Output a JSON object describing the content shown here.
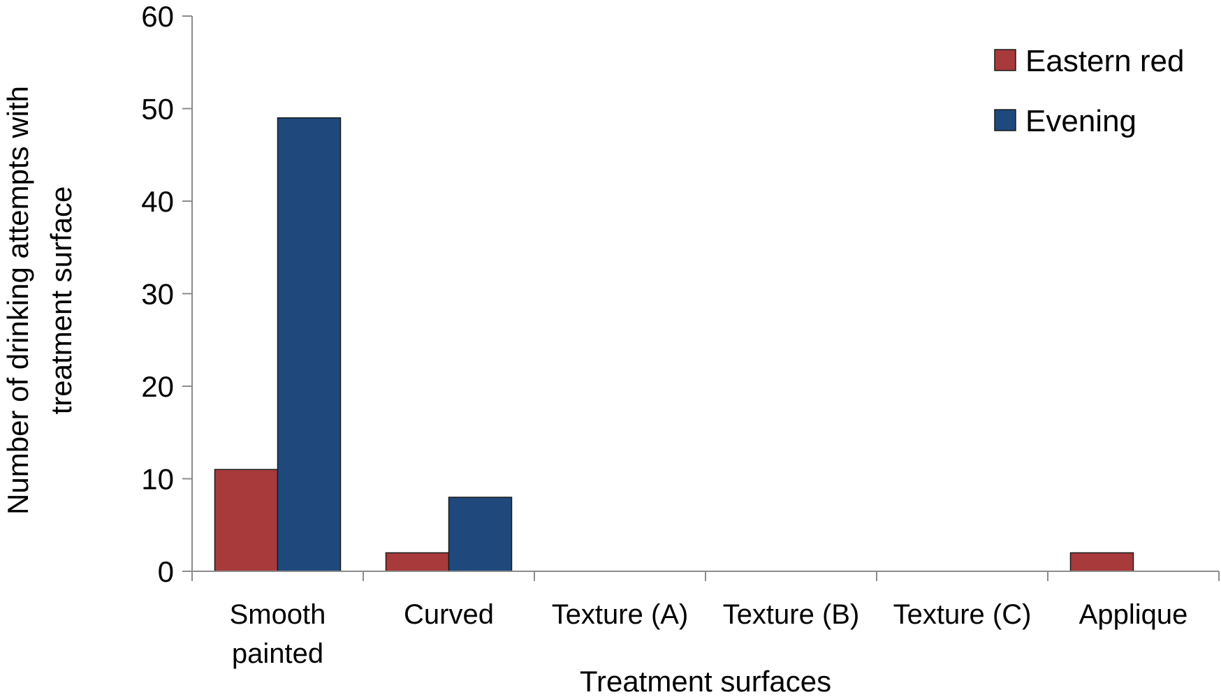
{
  "chart_data": {
    "type": "bar",
    "title": "",
    "xlabel": "Treatment surfaces",
    "ylabel": [
      "Number of drinking attempts with",
      "treatment surface"
    ],
    "ylim": [
      0,
      60
    ],
    "yticks": [
      0,
      10,
      20,
      30,
      40,
      50,
      60
    ],
    "categories": [
      [
        "Smooth",
        "painted"
      ],
      [
        "Curved"
      ],
      [
        "Texture (A)"
      ],
      [
        "Texture (B)"
      ],
      [
        "Texture (C)"
      ],
      [
        "Applique"
      ]
    ],
    "series": [
      {
        "name": "Eastern red",
        "color": "#a83a3b",
        "values": [
          11,
          2,
          0,
          0,
          0,
          2
        ]
      },
      {
        "name": "Evening",
        "color": "#1f497d",
        "values": [
          49,
          8,
          0,
          0,
          0,
          0
        ]
      }
    ],
    "grid": false,
    "legend_position": "top-right"
  }
}
